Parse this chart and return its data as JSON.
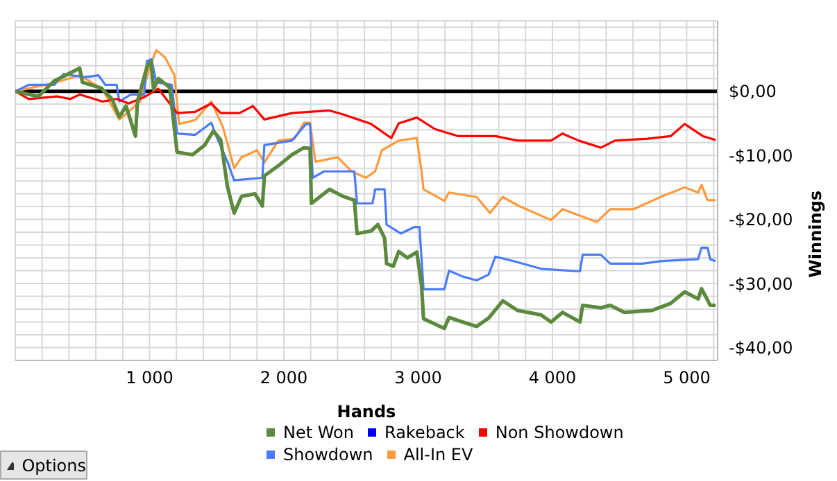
{
  "chart_data": {
    "type": "line",
    "xlabel": "Hands",
    "ylabel": "Winnings",
    "annotations": [
      "Options"
    ],
    "xlim": [
      0,
      5230
    ],
    "xticks": [
      {
        "value": 200,
        "label": null
      },
      {
        "value": 400,
        "label": null
      },
      {
        "value": 600,
        "label": null
      },
      {
        "value": 800,
        "label": null
      },
      {
        "value": 1000,
        "label": "1 000"
      },
      {
        "value": 1200,
        "label": null
      },
      {
        "value": 1400,
        "label": null
      },
      {
        "value": 1600,
        "label": null
      },
      {
        "value": 1800,
        "label": null
      },
      {
        "value": 2000,
        "label": "2 000"
      },
      {
        "value": 2200,
        "label": null
      },
      {
        "value": 2400,
        "label": null
      },
      {
        "value": 2600,
        "label": null
      },
      {
        "value": 2800,
        "label": null
      },
      {
        "value": 3000,
        "label": "3 000"
      },
      {
        "value": 3200,
        "label": null
      },
      {
        "value": 3400,
        "label": null
      },
      {
        "value": 3600,
        "label": null
      },
      {
        "value": 3800,
        "label": null
      },
      {
        "value": 4000,
        "label": "4 000"
      },
      {
        "value": 4200,
        "label": null
      },
      {
        "value": 4400,
        "label": null
      },
      {
        "value": 4600,
        "label": null
      },
      {
        "value": 4800,
        "label": null
      },
      {
        "value": 5000,
        "label": "5 000"
      },
      {
        "value": 5200,
        "label": null
      }
    ],
    "ylim": [
      -42,
      11
    ],
    "yticks": [
      {
        "value": -42,
        "label": null
      },
      {
        "value": -40,
        "label": "-$40,00"
      },
      {
        "value": -38,
        "label": null
      },
      {
        "value": -36,
        "label": null
      },
      {
        "value": -34,
        "label": null
      },
      {
        "value": -32,
        "label": null
      },
      {
        "value": -30,
        "label": "-$30,00"
      },
      {
        "value": -28,
        "label": null
      },
      {
        "value": -26,
        "label": null
      },
      {
        "value": -24,
        "label": null
      },
      {
        "value": -22,
        "label": null
      },
      {
        "value": -20,
        "label": "-$20,00"
      },
      {
        "value": -18,
        "label": null
      },
      {
        "value": -16,
        "label": null
      },
      {
        "value": -14,
        "label": null
      },
      {
        "value": -12,
        "label": null
      },
      {
        "value": -10,
        "label": "-$10,00"
      },
      {
        "value": -8,
        "label": null
      },
      {
        "value": -6,
        "label": null
      },
      {
        "value": -4,
        "label": null
      },
      {
        "value": -2,
        "label": null
      },
      {
        "value": 0,
        "label": "$0,00"
      },
      {
        "value": 2,
        "label": null
      },
      {
        "value": 4,
        "label": null
      },
      {
        "value": 6,
        "label": null
      },
      {
        "value": 8,
        "label": null
      },
      {
        "value": 10,
        "label": null
      }
    ],
    "grid": true,
    "legend": "bottom",
    "marker": "none",
    "line_style": "solid",
    "ref_lines": [
      {
        "axis": "y",
        "value": 0,
        "color": "#000000"
      }
    ],
    "series": [
      {
        "name": "Net Won",
        "color": "#5b8a3f",
        "x": [
          0,
          170,
          290,
          480,
          500,
          640,
          720,
          775,
          825,
          895,
          910,
          980,
          1010,
          1030,
          1065,
          1150,
          1205,
          1320,
          1410,
          1475,
          1530,
          1580,
          1630,
          1685,
          1785,
          1840,
          1855,
          1960,
          2060,
          2150,
          2195,
          2205,
          2340,
          2440,
          2525,
          2545,
          2650,
          2700,
          2750,
          2765,
          2815,
          2855,
          2920,
          2990,
          3025,
          3040,
          3195,
          3230,
          3330,
          3435,
          3525,
          3630,
          3740,
          3915,
          3990,
          4075,
          4205,
          4225,
          4360,
          4430,
          4535,
          4740,
          4880,
          4985,
          5085,
          5110,
          5175,
          5215
        ],
        "values": [
          0,
          -0.8,
          1.6,
          3.6,
          1.4,
          0.5,
          -1.2,
          -4,
          -2.3,
          -7,
          -1.6,
          3.8,
          4.7,
          0.3,
          2,
          0.6,
          -9.5,
          -9.9,
          -8.4,
          -6.2,
          -7.6,
          -14.9,
          -19,
          -16.4,
          -16,
          -17.9,
          -13.2,
          -11.6,
          -9.9,
          -8.8,
          -8.9,
          -17.5,
          -15.3,
          -16.4,
          -17,
          -22.2,
          -21.8,
          -20.8,
          -22.9,
          -26.9,
          -27.3,
          -25,
          -26,
          -25.1,
          -30.2,
          -35.5,
          -37,
          -35.3,
          -36,
          -36.7,
          -35.4,
          -32.7,
          -34.2,
          -34.9,
          -36,
          -34.5,
          -36,
          -33.4,
          -33.8,
          -33.4,
          -34.5,
          -34.2,
          -33.1,
          -31.3,
          -32.4,
          -30.8,
          -33.4,
          -33.4
        ]
      },
      {
        "name": "Rakeback",
        "color": "#0000ff"
      },
      {
        "name": "Non Showdown",
        "color": "#ff0000",
        "x": [
          0,
          100,
          310,
          410,
          480,
          650,
          755,
          845,
          960,
          1065,
          1205,
          1340,
          1460,
          1530,
          1670,
          1770,
          1855,
          2060,
          2340,
          2440,
          2650,
          2800,
          2855,
          2990,
          3125,
          3300,
          3575,
          3740,
          3990,
          4075,
          4195,
          4360,
          4465,
          4710,
          4880,
          4985,
          5120,
          5215
        ],
        "values": [
          0,
          -1.2,
          -0.8,
          -1.2,
          -0.5,
          -1.6,
          -1.2,
          -1.9,
          -0.9,
          0.4,
          -3.4,
          -3.2,
          -1.9,
          -3.4,
          -3.4,
          -2.3,
          -4.4,
          -3.4,
          -3,
          -3.6,
          -5.1,
          -7.3,
          -5,
          -4.1,
          -5.9,
          -7,
          -7,
          -7.7,
          -7.7,
          -6.6,
          -7.7,
          -8.8,
          -7.7,
          -7.4,
          -7,
          -5.1,
          -7,
          -7.6
        ]
      },
      {
        "name": "Showdown",
        "color": "#4a7bff",
        "x": [
          0,
          100,
          290,
          360,
          515,
          620,
          670,
          755,
          775,
          860,
          960,
          980,
          1015,
          1050,
          1165,
          1205,
          1340,
          1460,
          1495,
          1580,
          1630,
          1840,
          1855,
          2060,
          2165,
          2195,
          2215,
          2300,
          2525,
          2545,
          2660,
          2680,
          2750,
          2765,
          2870,
          2970,
          3010,
          3040,
          3195,
          3230,
          3330,
          3435,
          3525,
          3575,
          3710,
          3915,
          4205,
          4225,
          4360,
          4430,
          4670,
          4815,
          5085,
          5110,
          5155,
          5175,
          5215
        ],
        "values": [
          0,
          1,
          1,
          2.7,
          2.2,
          2.5,
          1,
          1,
          -1.6,
          -0.5,
          -0.5,
          4.7,
          5,
          1.4,
          1,
          -6.6,
          -6.8,
          -4.9,
          -6.9,
          -11,
          -13.9,
          -13.5,
          -8.4,
          -7.7,
          -5.1,
          -5.1,
          -13.5,
          -12.5,
          -12.5,
          -17.5,
          -17.5,
          -15.3,
          -15.3,
          -20.8,
          -22.2,
          -21.2,
          -21.2,
          -30.9,
          -30.9,
          -28,
          -28.9,
          -29.5,
          -28.6,
          -25.8,
          -26.5,
          -27.7,
          -28.1,
          -25.5,
          -25.5,
          -26.9,
          -26.9,
          -26.5,
          -26.2,
          -24.4,
          -24.4,
          -26.2,
          -26.5
        ]
      },
      {
        "name": "All-In EV",
        "color": "#ff9a3c",
        "x": [
          0,
          290,
          480,
          650,
          775,
          930,
          1000,
          1050,
          1115,
          1185,
          1220,
          1340,
          1460,
          1545,
          1630,
          1685,
          1800,
          1855,
          1960,
          2080,
          2150,
          2195,
          2235,
          2400,
          2505,
          2610,
          2680,
          2730,
          2855,
          2990,
          3025,
          3040,
          3195,
          3230,
          3435,
          3535,
          3630,
          3740,
          3990,
          4075,
          4330,
          4430,
          4605,
          4815,
          4985,
          5085,
          5110,
          5155,
          5215
        ],
        "values": [
          0,
          1.3,
          2.5,
          0.3,
          -4.4,
          -1.6,
          3.8,
          6.4,
          5.3,
          2.5,
          -5.1,
          -4.5,
          -1.6,
          -5.5,
          -12,
          -10.3,
          -9.2,
          -11.1,
          -7.7,
          -7.4,
          -4.9,
          -4.9,
          -11,
          -10.3,
          -12.5,
          -13.5,
          -12.5,
          -9.2,
          -7.7,
          -7.3,
          -12.5,
          -15.3,
          -17.1,
          -15.8,
          -16.5,
          -19,
          -16.5,
          -17.8,
          -20.1,
          -18.4,
          -20.4,
          -18.4,
          -18.4,
          -16.4,
          -15,
          -15.8,
          -14.6,
          -17,
          -17
        ]
      }
    ]
  }
}
